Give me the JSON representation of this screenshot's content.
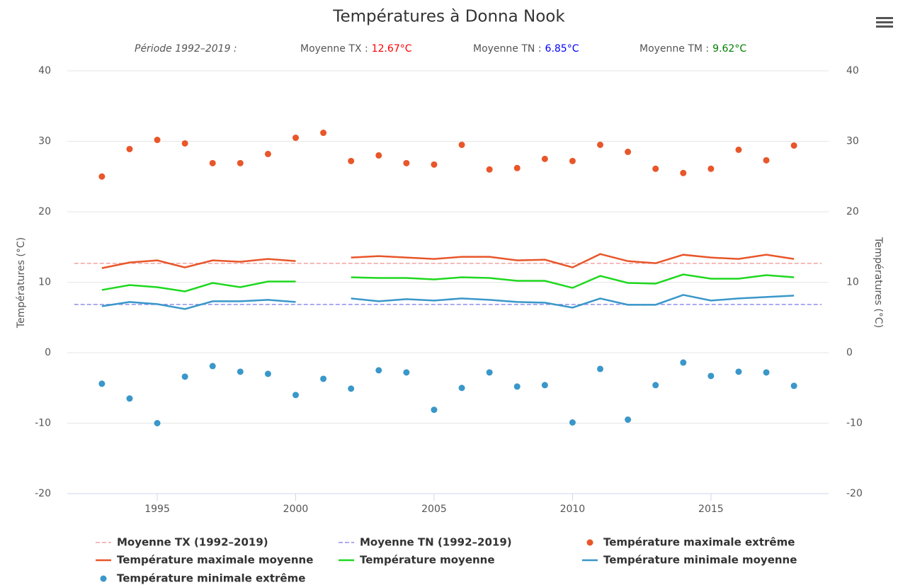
{
  "chart_data": {
    "type": "line",
    "title": "Températures à Donna Nook",
    "subtitle": {
      "period": "Période 1992–2019 :",
      "stats": [
        {
          "label": "Moyenne TX :",
          "value": "12.67°C",
          "color": "#ff0000"
        },
        {
          "label": "Moyenne TN :",
          "value": "6.85°C",
          "color": "#0000ff"
        },
        {
          "label": "Moyenne TM :",
          "value": "9.62°C",
          "color": "#008000"
        }
      ]
    },
    "ylabel": "Températures (°C)",
    "y2label": "Températures (°C)",
    "x": [
      1993,
      1994,
      1995,
      1996,
      1997,
      1998,
      1999,
      2000,
      2001,
      2002,
      2003,
      2004,
      2005,
      2006,
      2007,
      2008,
      2009,
      2010,
      2011,
      2012,
      2013,
      2014,
      2015,
      2016,
      2017,
      2018
    ],
    "xlim": [
      1991.75,
      2019.25
    ],
    "xticks": [
      1995,
      2000,
      2005,
      2010,
      2015
    ],
    "ylim": [
      -20,
      40
    ],
    "yticks": [
      -20,
      -10,
      0,
      10,
      20,
      30,
      40
    ],
    "y2lim": [
      -20,
      40
    ],
    "y2ticks": [
      -20,
      -10,
      0,
      10,
      20,
      30,
      40
    ],
    "grid": true,
    "legend": "bottom",
    "series": [
      {
        "name": "Moyenne TX (1992–2019)",
        "type": "dashed",
        "color": "#f4a3a3",
        "x": [
          1992,
          2019
        ],
        "values": [
          12.67,
          12.67
        ]
      },
      {
        "name": "Moyenne TN (1992–2019)",
        "type": "dashed",
        "color": "#8f8fee",
        "x": [
          1992,
          2019
        ],
        "values": [
          6.85,
          6.85
        ]
      },
      {
        "name": "Température maximale extrême",
        "type": "scatter",
        "color": "#e8562a",
        "values": [
          25,
          28.9,
          30.2,
          29.7,
          26.9,
          26.9,
          28.2,
          30.5,
          31.2,
          27.2,
          28.0,
          26.9,
          26.7,
          29.5,
          26.0,
          26.2,
          27.5,
          27.2,
          29.5,
          28.5,
          26.1,
          25.5,
          26.1,
          28.8,
          27.3,
          29.4
        ]
      },
      {
        "name": "Température maximale moyenne",
        "type": "line",
        "color": "#e8562a",
        "values": [
          12.0,
          12.8,
          13.1,
          12.1,
          13.1,
          12.9,
          13.3,
          13.0,
          null,
          13.5,
          13.7,
          13.5,
          13.3,
          13.6,
          13.6,
          13.1,
          13.2,
          12.1,
          14.0,
          13.0,
          12.7,
          13.9,
          13.5,
          13.3,
          13.9,
          13.3
        ]
      },
      {
        "name": "Température moyenne",
        "type": "line",
        "color": "#1fd81f",
        "values": [
          8.9,
          9.6,
          9.3,
          8.7,
          9.9,
          9.3,
          10.1,
          10.1,
          null,
          10.7,
          10.6,
          10.6,
          10.4,
          10.7,
          10.6,
          10.2,
          10.2,
          9.2,
          10.9,
          9.9,
          9.8,
          11.1,
          10.5,
          10.5,
          11.0,
          10.7
        ]
      },
      {
        "name": "Température minimale moyenne",
        "type": "line",
        "color": "#3a97c9",
        "values": [
          6.6,
          7.2,
          6.9,
          6.2,
          7.3,
          7.3,
          7.5,
          7.2,
          null,
          7.7,
          7.3,
          7.6,
          7.4,
          7.7,
          7.5,
          7.2,
          7.1,
          6.4,
          7.7,
          6.8,
          6.8,
          8.2,
          7.4,
          7.7,
          7.9,
          8.1
        ]
      },
      {
        "name": "Température minimale extrême",
        "type": "scatter",
        "color": "#3a97c9",
        "values": [
          -4.4,
          -6.5,
          -10.0,
          -3.4,
          -1.9,
          -2.7,
          -3.0,
          -6.0,
          -3.7,
          -5.1,
          -2.5,
          -2.8,
          -8.1,
          -5.0,
          -2.8,
          -4.8,
          -4.6,
          -9.9,
          -2.3,
          -9.5,
          -4.6,
          -1.4,
          -3.3,
          -2.7,
          -2.8,
          -4.7
        ]
      }
    ]
  }
}
